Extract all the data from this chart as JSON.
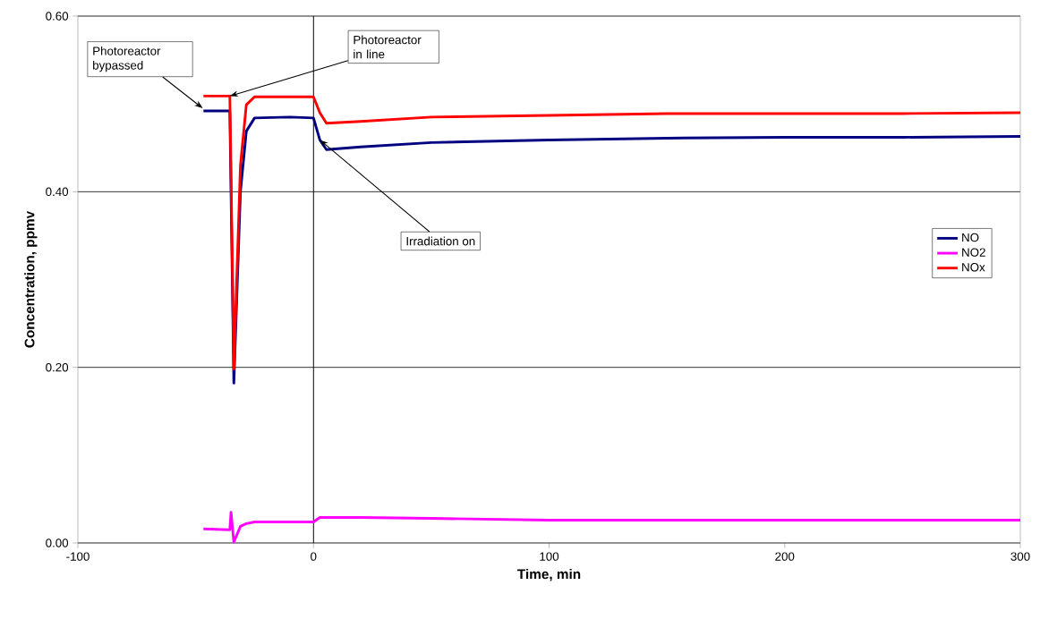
{
  "chart_data": {
    "type": "line",
    "xlabel": "Time, min",
    "ylabel": "Concentration, ppmv",
    "x": [
      -46.7,
      -35.5,
      -35,
      -33.8,
      -31,
      -28.5,
      -25,
      -10,
      0,
      2.7,
      5.5,
      20,
      50,
      100,
      150,
      200,
      250,
      300
    ],
    "series": [
      {
        "name": "NO",
        "color": "#000080",
        "values": [
          0.492,
          0.492,
          0.4,
          0.182,
          0.4,
          0.469,
          0.484,
          0.485,
          0.484,
          0.459,
          0.448,
          0.451,
          0.456,
          0.459,
          0.461,
          0.462,
          0.462,
          0.463
        ]
      },
      {
        "name": "NO2",
        "color": "#ff00ff",
        "values": [
          0.016,
          0.015,
          0.035,
          0.001,
          0.019,
          0.022,
          0.024,
          0.024,
          0.024,
          0.029,
          0.029,
          0.029,
          0.028,
          0.026,
          0.026,
          0.026,
          0.026,
          0.026
        ]
      },
      {
        "name": "NOx",
        "color": "#ff0000",
        "values": [
          0.509,
          0.509,
          0.42,
          0.198,
          0.43,
          0.499,
          0.508,
          0.508,
          0.508,
          0.49,
          0.478,
          0.48,
          0.485,
          0.487,
          0.489,
          0.489,
          0.489,
          0.49
        ]
      }
    ],
    "xlim": [
      -100,
      300
    ],
    "xticks": [
      -100,
      0,
      100,
      200,
      300
    ],
    "ylim": [
      0,
      0.6
    ],
    "yticks": [
      {
        "value": 0,
        "label": "0.00"
      },
      {
        "value": 0.2,
        "label": "0.20"
      },
      {
        "value": 0.4,
        "label": "0.40"
      },
      {
        "value": 0.6,
        "label": "0.60"
      }
    ],
    "grid": "y",
    "legend": "right",
    "marker": "none",
    "line_style": "solid",
    "ref_lines": [
      {
        "axis": "x",
        "value": 0,
        "color": "#000000"
      }
    ],
    "annotations": [
      {
        "text": "Photoreactor bypassed",
        "x": -47,
        "y": 0.495
      },
      {
        "text": "Photoreactor in line",
        "x": -35.5,
        "y": 0.509
      },
      {
        "text": "Irradiation on",
        "x": 2.7,
        "y": 0.459
      }
    ]
  }
}
